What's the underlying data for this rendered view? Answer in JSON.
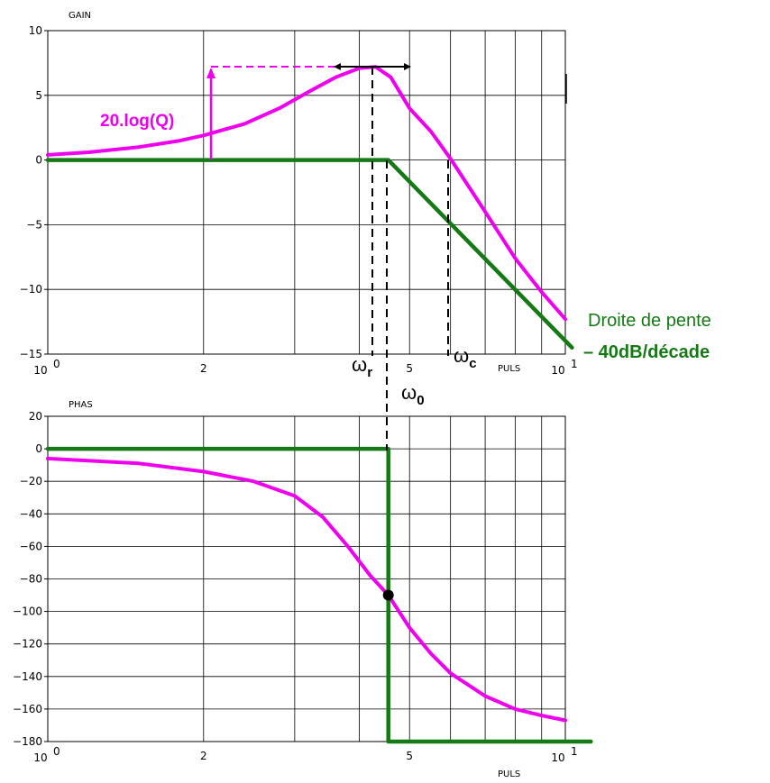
{
  "colors": {
    "magenta": "#ee00ee",
    "green": "#157a15",
    "grid": "#000000"
  },
  "chart_data": [
    {
      "type": "line",
      "panel": "gain",
      "title": "GAIN",
      "xlabel": "PULS",
      "x_scale": "log",
      "xlim": [
        1,
        10
      ],
      "ylim": [
        -15,
        10
      ],
      "y_ticks": [
        10,
        5,
        0,
        -5,
        -10,
        -15
      ],
      "x_tick_labels": [
        {
          "x": 1,
          "base": "10",
          "exp": "0"
        },
        {
          "x": 2,
          "label": "2"
        },
        {
          "x": 5,
          "label": "5"
        },
        {
          "x": 10,
          "base": "10",
          "exp": "1"
        }
      ],
      "series": [
        {
          "role": "gain_curve",
          "color": "#ee00ee",
          "x": [
            1,
            1.2,
            1.5,
            1.8,
            2.0,
            2.4,
            2.8,
            3.2,
            3.6,
            4.0,
            4.3,
            4.6,
            5.0,
            5.5,
            6.0,
            7.0,
            8.0,
            9.0,
            10.0
          ],
          "y": [
            0.4,
            0.6,
            1.0,
            1.5,
            1.9,
            2.8,
            4.0,
            5.3,
            6.4,
            7.1,
            7.2,
            6.4,
            4.0,
            2.2,
            0.1,
            -4.0,
            -7.6,
            -10.2,
            -12.3
          ]
        },
        {
          "role": "asymptote",
          "color": "#157a15",
          "x": [
            1,
            4.55,
            10.3
          ],
          "y": [
            0,
            0,
            -14.5
          ]
        }
      ],
      "annotations": {
        "q_label": "20.log(Q)",
        "q_value_db": 7.2,
        "wr_base": "ω",
        "wr_sub": "r",
        "w0_base": "ω",
        "w0_sub": "0",
        "wc_base": "ω",
        "wc_sub": "c",
        "slope_line1": "Droite de pente",
        "slope_line2": "– 40dB/décade"
      }
    },
    {
      "type": "line",
      "panel": "phase",
      "title": "PHAS",
      "xlabel": "PULS",
      "x_scale": "log",
      "xlim": [
        1,
        10
      ],
      "ylim": [
        -180,
        20
      ],
      "y_ticks": [
        20,
        0,
        -20,
        -40,
        -60,
        -80,
        -100,
        -120,
        -140,
        -160,
        -180
      ],
      "x_tick_labels": [
        {
          "x": 1,
          "base": "10",
          "exp": "0"
        },
        {
          "x": 2,
          "label": "2"
        },
        {
          "x": 5,
          "label": "5"
        },
        {
          "x": 10,
          "base": "10",
          "exp": "1"
        }
      ],
      "series": [
        {
          "role": "phase_curve",
          "color": "#ee00ee",
          "x": [
            1,
            1.5,
            2.0,
            2.5,
            3.0,
            3.4,
            3.8,
            4.2,
            4.55,
            5.0,
            5.5,
            6.0,
            7.0,
            8.0,
            9.0,
            10.0
          ],
          "y": [
            -6,
            -9,
            -14,
            -20,
            -29,
            -42,
            -60,
            -78,
            -90,
            -110,
            -126,
            -138,
            -152,
            -160,
            -164,
            -167
          ]
        },
        {
          "role": "phase_asymptote",
          "color": "#157a15",
          "x": [
            1,
            4.55,
            4.55,
            11.2
          ],
          "y": [
            0,
            0,
            -180,
            -180
          ]
        }
      ],
      "marker": {
        "x": 4.55,
        "y": -90
      }
    }
  ]
}
